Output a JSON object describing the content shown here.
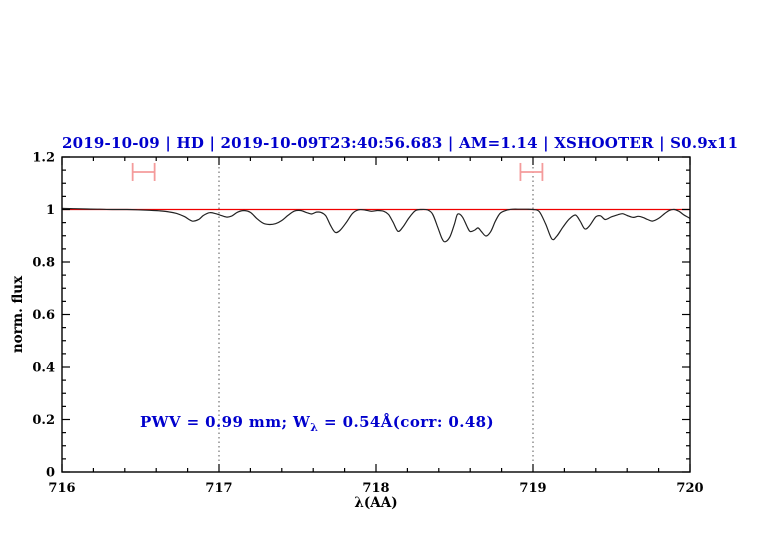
{
  "title": "2019-10-09 | HD | 2019-10-09T23:40:56.683 | AM=1.14 | XSHOOTER | S0.9x11",
  "annotation": {
    "pre": "PWV = 0.99 mm; W",
    "sub": "λ",
    "post": " = 0.54Å(corr: 0.48)"
  },
  "colors": {
    "title_text": "#0000cd",
    "annotation_text": "#0000cd",
    "spectrum_line": "#222222",
    "continuum_line": "#f00000",
    "range_marker": "#f49b9b",
    "axis": "#000000",
    "dotted_guide": "#555555"
  },
  "axes": {
    "xlabel": "λ(AA)",
    "ylabel": "norm. flux",
    "xlim": [
      716,
      720
    ],
    "ylim": [
      0,
      1.2
    ],
    "xticks": [
      716,
      717,
      718,
      719,
      720
    ],
    "xtick_labels": [
      "716",
      "717",
      "718",
      "719",
      "720"
    ],
    "ytick_values": [
      0,
      0.2,
      0.4,
      0.6,
      0.8,
      1,
      1.2
    ],
    "ytick_labels": [
      "0",
      "0.2",
      "0.4",
      "0.6",
      "0.8",
      "1",
      "1.2"
    ],
    "x_minor_step": 0.2,
    "y_minor_step": 0.05
  },
  "chart_data": {
    "type": "line",
    "title": "2019-10-09 | HD | 2019-10-09T23:40:56.683 | AM=1.14 | XSHOOTER | S0.9x11",
    "xlabel": "λ(AA)",
    "ylabel": "norm. flux",
    "xlim": [
      716,
      720
    ],
    "ylim": [
      0,
      1.2
    ],
    "grid": false,
    "dotted_guides_x": [
      717,
      719
    ],
    "series": [
      {
        "name": "telluric-spectrum",
        "color": "#222222",
        "x": [
          716.0,
          716.08,
          716.16,
          716.24,
          716.32,
          716.4,
          716.48,
          716.56,
          716.62,
          716.68,
          716.73,
          716.78,
          716.83,
          716.87,
          716.9,
          716.94,
          716.98,
          717.01,
          717.05,
          717.08,
          717.12,
          717.16,
          717.2,
          717.24,
          717.28,
          717.32,
          717.36,
          717.4,
          717.44,
          717.48,
          717.52,
          717.56,
          717.59,
          717.62,
          717.65,
          717.68,
          717.71,
          717.74,
          717.77,
          717.81,
          717.85,
          717.89,
          717.93,
          717.97,
          718.01,
          718.05,
          718.08,
          718.11,
          718.14,
          718.17,
          718.21,
          718.25,
          718.29,
          718.33,
          718.36,
          718.39,
          718.42,
          718.44,
          718.47,
          718.5,
          718.52,
          718.55,
          718.58,
          718.6,
          718.63,
          718.65,
          718.67,
          718.7,
          718.73,
          718.76,
          718.79,
          718.83,
          718.87,
          718.92,
          718.96,
          719.0,
          719.04,
          719.08,
          719.12,
          719.15,
          719.19,
          719.23,
          719.27,
          719.3,
          719.33,
          719.36,
          719.4,
          719.43,
          719.46,
          719.5,
          719.54,
          719.57,
          719.6,
          719.64,
          719.67,
          719.7,
          719.73,
          719.76,
          719.8,
          719.84,
          719.87,
          719.9,
          719.93,
          719.96,
          720.0
        ],
        "y": [
          1.004,
          1.003,
          1.002,
          1.001,
          1.0,
          1.0,
          0.999,
          0.997,
          0.995,
          0.991,
          0.985,
          0.973,
          0.956,
          0.962,
          0.977,
          0.988,
          0.984,
          0.978,
          0.971,
          0.975,
          0.99,
          0.996,
          0.989,
          0.966,
          0.948,
          0.943,
          0.946,
          0.958,
          0.978,
          0.994,
          0.996,
          0.988,
          0.983,
          0.99,
          0.989,
          0.976,
          0.94,
          0.913,
          0.92,
          0.95,
          0.985,
          0.999,
          0.998,
          0.993,
          0.996,
          0.993,
          0.981,
          0.95,
          0.917,
          0.932,
          0.968,
          0.995,
          1.0,
          0.998,
          0.983,
          0.938,
          0.89,
          0.877,
          0.895,
          0.945,
          0.982,
          0.972,
          0.935,
          0.916,
          0.922,
          0.93,
          0.917,
          0.899,
          0.915,
          0.955,
          0.985,
          0.997,
          1.001,
          1.001,
          1.001,
          1.0,
          0.992,
          0.945,
          0.888,
          0.897,
          0.932,
          0.963,
          0.979,
          0.956,
          0.926,
          0.938,
          0.972,
          0.976,
          0.962,
          0.972,
          0.98,
          0.984,
          0.977,
          0.97,
          0.974,
          0.97,
          0.962,
          0.956,
          0.966,
          0.985,
          0.997,
          1.0,
          0.993,
          0.98,
          0.966
        ]
      },
      {
        "name": "continuum",
        "color": "#f00000",
        "style": "hline",
        "y_value": 1.0
      }
    ],
    "range_markers": [
      {
        "x_center": 716.52,
        "x_half_width": 0.07,
        "y": 1.143,
        "color": "#f49b9b"
      },
      {
        "x_center": 718.99,
        "x_half_width": 0.07,
        "y": 1.143,
        "color": "#f49b9b"
      }
    ]
  }
}
